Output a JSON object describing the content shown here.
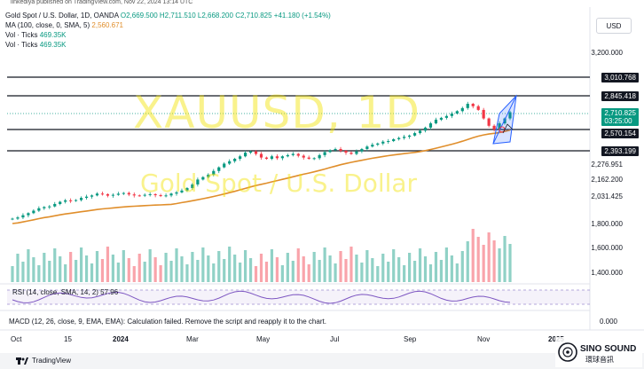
{
  "top_note": "linkediya published on TradingView.com, Nov 22, 2024 13:14 UTC",
  "header": {
    "symbol_line": "Gold Spot / U.S. Dollar, 1D, OANDA",
    "open": "O2,669.500",
    "high": "H2,711.510",
    "low": "L2,668.200",
    "close": "C2,710.825",
    "change": "+41.180 (+1.54%)",
    "ma_label": "MA (100, close, 0, SMA, 5)",
    "ma_value": "2,560.671",
    "vol1_label": "Vol · Ticks",
    "vol1_value": "469.35K",
    "vol2_label": "Vol · Ticks",
    "vol2_value": "469.35K"
  },
  "currency_button": "USD",
  "watermark": {
    "symbol": "XAUUSD, 1D",
    "name": "Gold Spot / U.S. Dollar"
  },
  "price_axis": {
    "labels": [
      "3,200.000",
      "2,276.951",
      "2,162.200",
      "2,031.425",
      "1,800.000",
      "1,600.000",
      "1,400.000"
    ],
    "tags": {
      "r1": "3,010.768",
      "r2": "2,845.418",
      "current": "2,710.825",
      "countdown": "03:25:00",
      "s1": "2,570.154",
      "s2": "2,393.199"
    }
  },
  "rsi_label": "RSI (14, close, SMA, 14, 2)  57.96",
  "macd": {
    "label": "MACD (12, 26, close, 9, EMA, EMA): Calculation failed. Remove the script and reapply it to the chart.",
    "zero": "0.000"
  },
  "time_axis": [
    "Oct",
    "15",
    "2024",
    "Mar",
    "May",
    "Jul",
    "Sep",
    "Nov",
    "2025"
  ],
  "footer": {
    "brand": "TradingView"
  },
  "logo": {
    "name": "SINO SOUND",
    "sub": "環球音訊"
  },
  "colors": {
    "up": "#089981",
    "down": "#f23645",
    "ma": "#e08e2b",
    "channel": "#2962ff",
    "watermark": "#f2e200"
  },
  "chart_data": {
    "type": "candlestick",
    "symbol": "XAUUSD",
    "interval": "1D",
    "ylim": [
      1350,
      3300
    ],
    "closes": [
      1840,
      1850,
      1868,
      1885,
      1905,
      1925,
      1935,
      1940,
      1960,
      1978,
      1990,
      1985,
      1992,
      2010,
      2020,
      2030,
      2045,
      2040,
      2028,
      2035,
      2044,
      2050,
      2038,
      2030,
      2028,
      2035,
      2040,
      2032,
      2025,
      2030,
      2045,
      2055,
      2070,
      2090,
      2120,
      2160,
      2180,
      2200,
      2230,
      2260,
      2290,
      2310,
      2330,
      2350,
      2380,
      2390,
      2370,
      2340,
      2330,
      2350,
      2335,
      2350,
      2360,
      2370,
      2355,
      2340,
      2330,
      2335,
      2360,
      2385,
      2400,
      2410,
      2395,
      2380,
      2370,
      2390,
      2410,
      2430,
      2445,
      2455,
      2470,
      2475,
      2490,
      2500,
      2510,
      2520,
      2540,
      2560,
      2585,
      2620,
      2650,
      2665,
      2680,
      2700,
      2720,
      2745,
      2780,
      2760,
      2730,
      2660,
      2600,
      2570,
      2620,
      2660,
      2711
    ],
    "ma100_last": 2560.671,
    "horizontal_levels": [
      3010.768,
      2845.418,
      2570.154,
      2393.199
    ]
  }
}
